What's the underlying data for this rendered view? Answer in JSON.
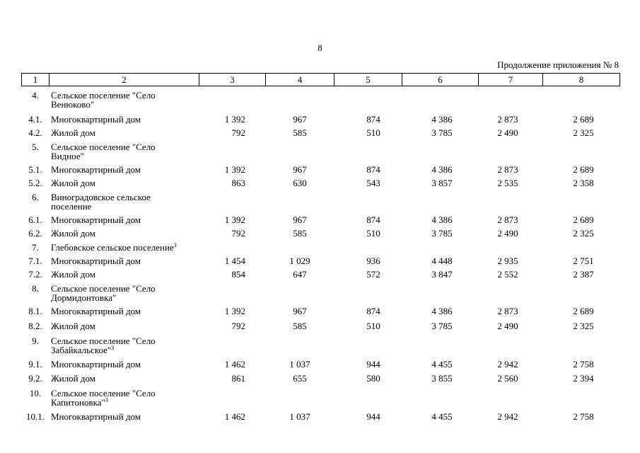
{
  "page_number": "8",
  "caption": "Продолжение приложения № 8",
  "table": {
    "header": [
      "1",
      "2",
      "3",
      "4",
      "5",
      "6",
      "7",
      "8"
    ],
    "rows": [
      {
        "num": "4.",
        "name": [
          "Сельское поселение \"Село",
          "Венюково\""
        ]
      },
      {
        "num": "4.1.",
        "name": [
          "Многоквартирный дом"
        ],
        "values": [
          "1 392",
          "967",
          "874",
          "4 386",
          "2 873",
          "2 689"
        ]
      },
      {
        "num": "4.2.",
        "name": [
          "Жилой дом"
        ],
        "values": [
          "792",
          "585",
          "510",
          "3 785",
          "2 490",
          "2 325"
        ]
      },
      {
        "num": "5.",
        "name": [
          "Сельское поселение \"Село",
          "Видное\""
        ]
      },
      {
        "num": "5.1.",
        "name": [
          "Многоквартирный дом"
        ],
        "values": [
          "1 392",
          "967",
          "874",
          "4 386",
          "2 873",
          "2 689"
        ]
      },
      {
        "num": "5.2.",
        "name": [
          "Жилой дом"
        ],
        "values": [
          "863",
          "630",
          "543",
          "3 857",
          "2 535",
          "2 358"
        ]
      },
      {
        "num": "6.",
        "name": [
          "Виноградовское сельское",
          "поселение"
        ]
      },
      {
        "num": "6.1.",
        "name": [
          "Многоквартирный дом"
        ],
        "values": [
          "1 392",
          "967",
          "874",
          "4 386",
          "2 873",
          "2 689"
        ]
      },
      {
        "num": "6.2.",
        "name": [
          "Жилой дом"
        ],
        "values": [
          "792",
          "585",
          "510",
          "3 785",
          "2 490",
          "2 325"
        ]
      },
      {
        "num": "7.",
        "name": [
          "Глебовское сельское поселение"
        ],
        "note": "3"
      },
      {
        "num": "7.1.",
        "name": [
          "Многоквартирный дом"
        ],
        "values": [
          "1 454",
          "1 029",
          "936",
          "4 448",
          "2 935",
          "2 751"
        ]
      },
      {
        "num": "7.2.",
        "name": [
          "Жилой дом"
        ],
        "values": [
          "854",
          "647",
          "572",
          "3 847",
          "2 552",
          "2 387"
        ]
      },
      {
        "num": "8.",
        "name": [
          "Сельское поселение \"Село",
          "Дормидонтовка\""
        ]
      },
      {
        "num": "8.1.",
        "name": [
          "Многоквартирный дом"
        ],
        "values": [
          "1 392",
          "967",
          "874",
          "4 386",
          "2 873",
          "2 689"
        ]
      },
      {
        "num": "8.2.",
        "name": [
          "Жилой дом"
        ],
        "values": [
          "792",
          "585",
          "510",
          "3 785",
          "2 490",
          "2 325"
        ]
      },
      {
        "num": "9.",
        "name": [
          "Сельское поселение \"Село",
          "Забайкальское\""
        ],
        "note": "3"
      },
      {
        "num": "9.1.",
        "name": [
          "Многоквартирный дом"
        ],
        "values": [
          "1 462",
          "1 037",
          "944",
          "4 455",
          "2 942",
          "2 758"
        ]
      },
      {
        "num": "9.2.",
        "name": [
          "Жилой дом"
        ],
        "values": [
          "861",
          "655",
          "580",
          "3 855",
          "2 560",
          "2 394"
        ]
      },
      {
        "num": "10.",
        "name": [
          "Сельское поселение \"Село",
          "Капитоновка\""
        ],
        "note": "3"
      },
      {
        "num": "10.1.",
        "name": [
          "Многоквартирный дом"
        ],
        "values": [
          "1 462",
          "1 037",
          "944",
          "4 455",
          "2 942",
          "2 758"
        ]
      }
    ]
  }
}
